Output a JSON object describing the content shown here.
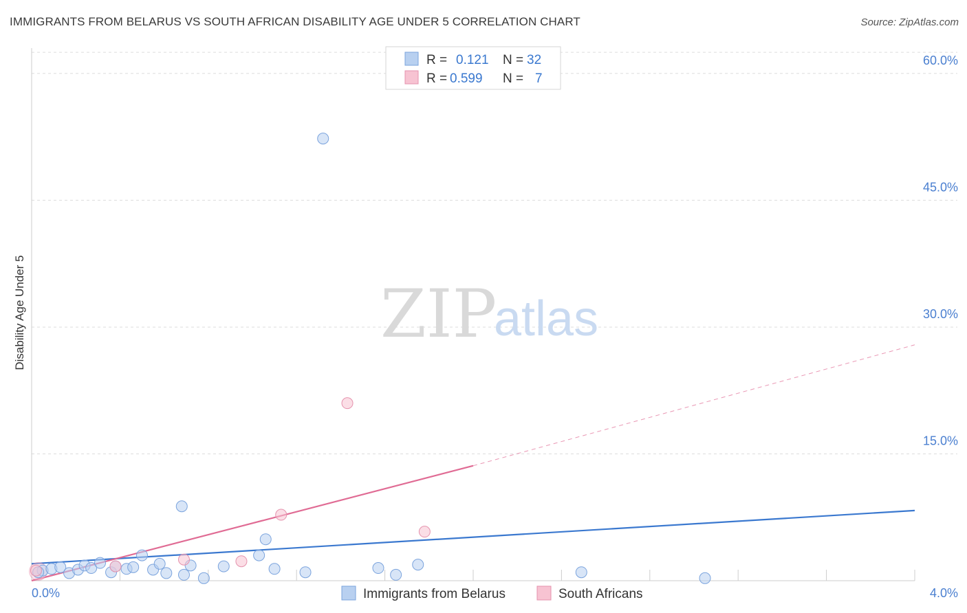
{
  "title": "IMMIGRANTS FROM BELARUS VS SOUTH AFRICAN DISABILITY AGE UNDER 5 CORRELATION CHART",
  "source": "Source: ZipAtlas.com",
  "watermark": {
    "zip": "ZIP",
    "atlas": "atlas"
  },
  "legend": {
    "r_label": "R =",
    "n_label": "N =",
    "rows": [
      {
        "r": "0.121",
        "n": "32",
        "color": "#a9c8f2"
      },
      {
        "r": "0.599",
        "n": "7",
        "color": "#f7b9cb"
      }
    ]
  },
  "colors": {
    "blue": "#3a78cf",
    "pink": "#e06b94",
    "blue_fill": "#b8d0f0",
    "pink_fill": "#f7c3d2"
  },
  "chart_data": {
    "type": "scatter",
    "title": "IMMIGRANTS FROM BELARUS VS SOUTH AFRICAN DISABILITY AGE UNDER 5 CORRELATION CHART",
    "xlabel": "",
    "ylabel": "Disability Age Under 5",
    "xlim": [
      0,
      4.0
    ],
    "ylim": [
      0,
      63
    ],
    "x_tick_labels": [
      "0.0%",
      "4.0%"
    ],
    "y_ticks": [
      15,
      30,
      45,
      60
    ],
    "y_tick_labels": [
      "15.0%",
      "30.0%",
      "45.0%",
      "60.0%"
    ],
    "grid": true,
    "legend_position": "top-center",
    "series": [
      {
        "name": "Immigrants from Belarus",
        "color": "#3a78cf",
        "points": [
          [
            0.05,
            1.2
          ],
          [
            0.09,
            1.4
          ],
          [
            0.13,
            1.6
          ],
          [
            0.17,
            0.9
          ],
          [
            0.21,
            1.3
          ],
          [
            0.24,
            1.8
          ],
          [
            0.27,
            1.5
          ],
          [
            0.31,
            2.1
          ],
          [
            0.36,
            1.0
          ],
          [
            0.38,
            1.7
          ],
          [
            0.43,
            1.4
          ],
          [
            0.46,
            1.6
          ],
          [
            0.5,
            3.0
          ],
          [
            0.55,
            1.3
          ],
          [
            0.58,
            2.0
          ],
          [
            0.61,
            0.9
          ],
          [
            0.68,
            8.8
          ],
          [
            0.69,
            0.7
          ],
          [
            0.72,
            1.8
          ],
          [
            0.78,
            0.3
          ],
          [
            0.87,
            1.7
          ],
          [
            1.03,
            3.0
          ],
          [
            1.06,
            4.9
          ],
          [
            1.1,
            1.4
          ],
          [
            1.24,
            1.0
          ],
          [
            1.32,
            52.3
          ],
          [
            1.57,
            1.5
          ],
          [
            1.65,
            0.7
          ],
          [
            1.75,
            1.9
          ],
          [
            2.49,
            1.0
          ],
          [
            3.05,
            0.3
          ],
          [
            0.03,
            1.0
          ]
        ],
        "trend": {
          "x": [
            0.0,
            4.0
          ],
          "y": [
            2.0,
            8.3
          ],
          "style": "solid"
        }
      },
      {
        "name": "South Africans",
        "color": "#e06b94",
        "points": [
          [
            0.02,
            1.2
          ],
          [
            0.38,
            1.7
          ],
          [
            0.69,
            2.5
          ],
          [
            0.95,
            2.3
          ],
          [
            1.13,
            7.8
          ],
          [
            1.43,
            21.0
          ],
          [
            1.78,
            5.8
          ]
        ],
        "trend": {
          "x": [
            0.0,
            2.0,
            4.0
          ],
          "y": [
            0.0,
            13.6,
            27.9
          ],
          "style": "solid-then-dashed"
        }
      }
    ]
  }
}
